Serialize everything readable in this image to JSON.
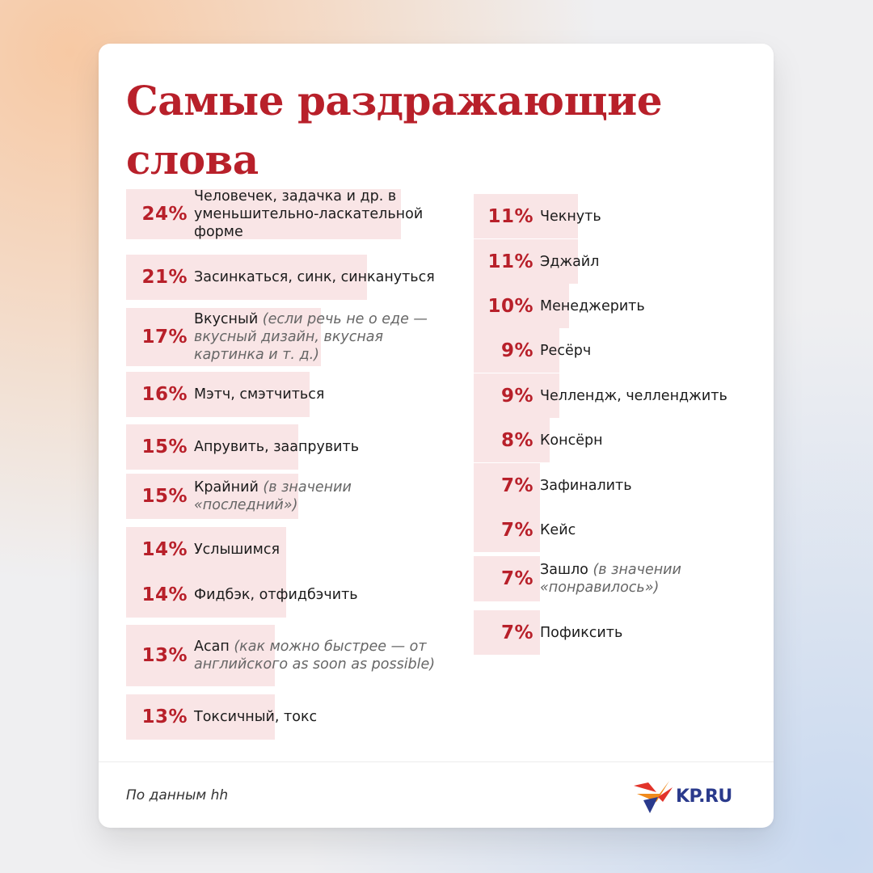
{
  "title": "Самые раздражающие слова",
  "source": "По данным hh",
  "logo_text": "KP.RU",
  "colors": {
    "accent": "#b8202a",
    "bar": "#f9e5e6",
    "logo": "#2a3a8c"
  },
  "chart_data": {
    "type": "bar",
    "title": "Самые раздражающие слова",
    "value_unit": "%",
    "xlim": [
      0,
      24
    ],
    "columns": [
      {
        "items": [
          {
            "value": 24,
            "pct": "24%",
            "label": "Человечек, задачка и др. в уменьшительно-ласкательной форме",
            "note": ""
          },
          {
            "value": 21,
            "pct": "21%",
            "label": "Засинкаться, синк, синкануться",
            "note": ""
          },
          {
            "value": 17,
            "pct": "17%",
            "label": "Вкусный",
            "note": "(если речь не о еде — вкусный дизайн, вкусная картинка и т. д.)"
          },
          {
            "value": 16,
            "pct": "16%",
            "label": "Мэтч, смэтчиться",
            "note": ""
          },
          {
            "value": 15,
            "pct": "15%",
            "label": "Апрувить, заапрувить",
            "note": ""
          },
          {
            "value": 15,
            "pct": "15%",
            "label": "Крайний",
            "note": "(в значении «последний»)"
          },
          {
            "value": 14,
            "pct": "14%",
            "label": "Услышимся",
            "note": ""
          },
          {
            "value": 14,
            "pct": "14%",
            "label": "Фидбэк, отфидбэчить",
            "note": ""
          },
          {
            "value": 13,
            "pct": "13%",
            "label": "Асап",
            "note": "(как можно быстрее — от английского as soon as possible)"
          },
          {
            "value": 13,
            "pct": "13%",
            "label": "Токсичный, токс",
            "note": ""
          }
        ]
      },
      {
        "items": [
          {
            "value": 11,
            "pct": "11%",
            "label": "Чекнуть",
            "note": ""
          },
          {
            "value": 11,
            "pct": "11%",
            "label": "Эджайл",
            "note": ""
          },
          {
            "value": 10,
            "pct": "10%",
            "label": "Менеджерить",
            "note": ""
          },
          {
            "value": 9,
            "pct": "9%",
            "label": "Ресёрч",
            "note": ""
          },
          {
            "value": 9,
            "pct": "9%",
            "label": "Челлендж, челленджить",
            "note": ""
          },
          {
            "value": 8,
            "pct": "8%",
            "label": "Консёрн",
            "note": ""
          },
          {
            "value": 7,
            "pct": "7%",
            "label": "Зафиналить",
            "note": ""
          },
          {
            "value": 7,
            "pct": "7%",
            "label": "Кейс",
            "note": ""
          },
          {
            "value": 7,
            "pct": "7%",
            "label": "Зашло",
            "note": "(в значении «понравилось»)"
          },
          {
            "value": 7,
            "pct": "7%",
            "label": "Пофиксить",
            "note": ""
          }
        ]
      }
    ]
  }
}
